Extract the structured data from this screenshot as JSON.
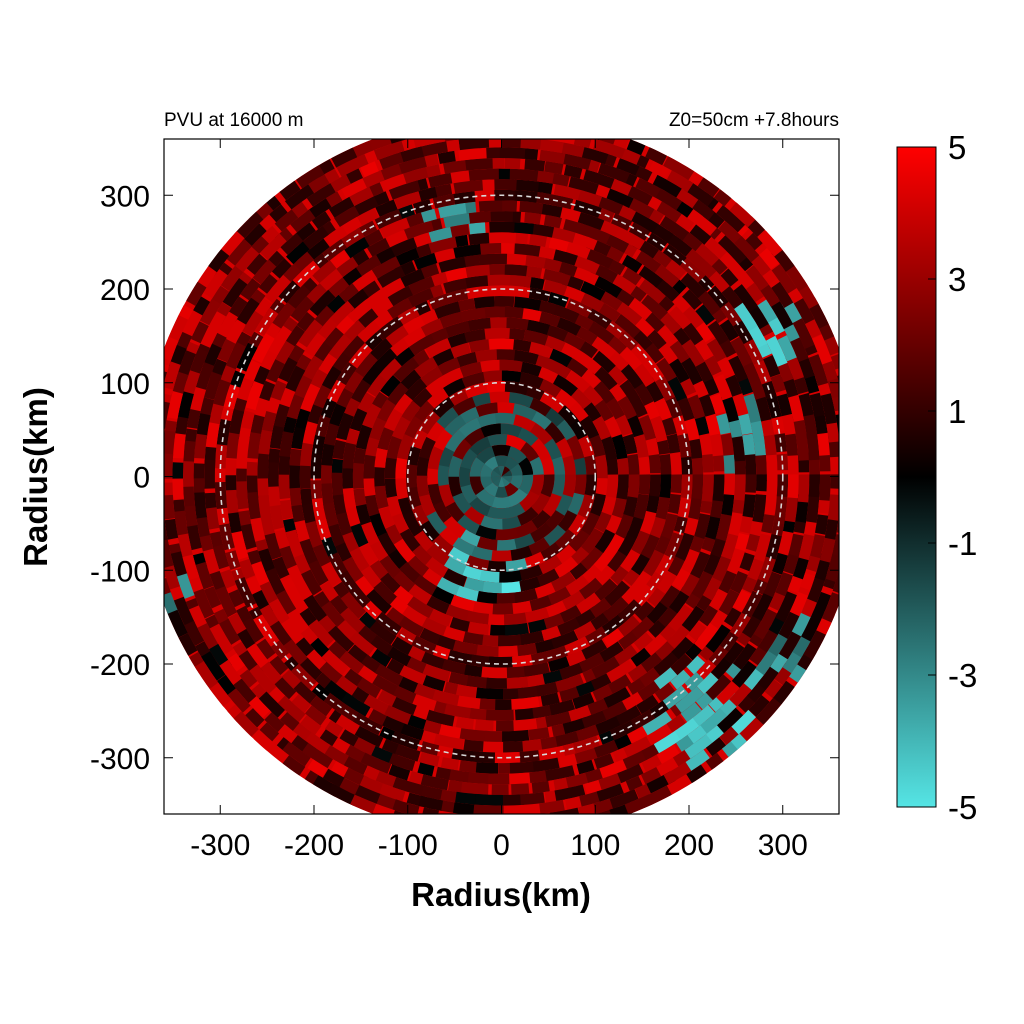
{
  "chart_data": {
    "type": "heatmap",
    "title": "PVU at 16000 m",
    "subtitle": "Z0=50cm  +7.8hours",
    "xlabel": "Radius(km)",
    "ylabel": "Radius(km)",
    "xlim": [
      -360,
      360
    ],
    "ylim": [
      -360,
      360
    ],
    "x_ticks": [
      -300,
      -200,
      -100,
      0,
      100,
      200,
      300
    ],
    "y_ticks": [
      -300,
      -200,
      -100,
      0,
      100,
      200,
      300
    ],
    "x_tick_labels": [
      "-300",
      "-200",
      "-100",
      "0",
      "100",
      "200",
      "300"
    ],
    "y_tick_labels": [
      "300",
      "200",
      "100",
      "0",
      "-100",
      "-200",
      "-300"
    ],
    "domain_radius": 385,
    "range_rings": [
      100,
      200,
      300
    ],
    "colorbar": {
      "range": [
        -5,
        5
      ],
      "ticks": [
        5,
        3,
        1,
        -1,
        -3,
        -5
      ],
      "tick_labels": [
        "5",
        "3",
        "1",
        "-1",
        "-3",
        "-5"
      ],
      "colors": [
        "#55e5e5",
        "#000000",
        "#ff0000"
      ]
    },
    "negative_regions": [
      {
        "x": 0,
        "y": 0,
        "r": 95,
        "level": -2
      },
      {
        "x": -20,
        "y": -105,
        "r": 45,
        "level": -4
      },
      {
        "x": 20,
        "y": -130,
        "r": 20,
        "level": -5
      },
      {
        "x": 290,
        "y": 150,
        "r": 40,
        "level": -4
      },
      {
        "x": 260,
        "y": 40,
        "r": 35,
        "level": -3
      },
      {
        "x": 230,
        "y": -250,
        "r": 70,
        "level": -4
      },
      {
        "x": 320,
        "y": -190,
        "r": 45,
        "level": -3
      },
      {
        "x": -50,
        "y": 270,
        "r": 30,
        "level": -3
      },
      {
        "x": -340,
        "y": -130,
        "r": 25,
        "level": -3
      }
    ],
    "grid": false,
    "legend": "colorbar-right"
  }
}
